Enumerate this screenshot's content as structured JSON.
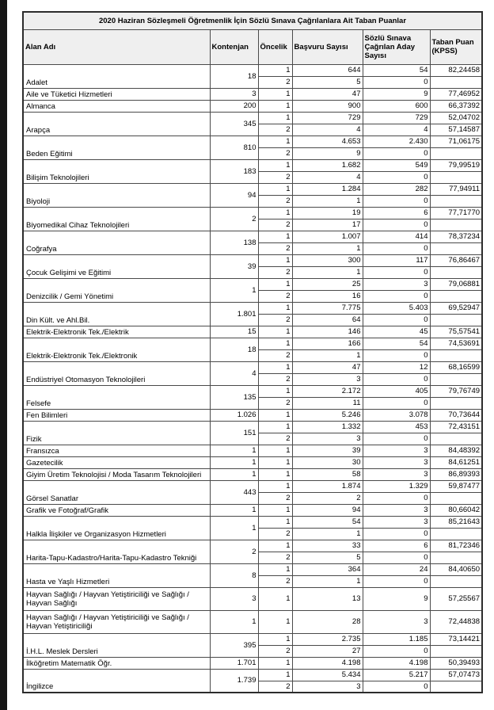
{
  "table": {
    "title": "2020 Haziran Sözleşmeli Öğretmenlik İçin Sözlü Sınava Çağrılanlara Ait Taban Puanlar",
    "columns": [
      "Alan Adı",
      "Kontenjan",
      "Öncelik",
      "Başvuru Sayısı",
      "Sözlü Sınava Çağrılan Aday Sayısı",
      "Taban Puan (KPSS)"
    ],
    "rows": [
      {
        "alan": "Adalet",
        "kontenjan": "18",
        "oncelik": [
          {
            "o": "1",
            "basvuru": "644",
            "cagrilan": "54",
            "taban": "82,24458"
          },
          {
            "o": "2",
            "basvuru": "5",
            "cagrilan": "0",
            "taban": ""
          }
        ]
      },
      {
        "alan": "Aile ve Tüketici Hizmetleri",
        "kontenjan": "3",
        "oncelik": [
          {
            "o": "1",
            "basvuru": "47",
            "cagrilan": "9",
            "taban": "77,46952"
          }
        ]
      },
      {
        "alan": "Almanca",
        "kontenjan": "200",
        "oncelik": [
          {
            "o": "1",
            "basvuru": "900",
            "cagrilan": "600",
            "taban": "66,37392"
          }
        ]
      },
      {
        "alan": "Arapça",
        "kontenjan": "345",
        "oncelik": [
          {
            "o": "1",
            "basvuru": "729",
            "cagrilan": "729",
            "taban": "52,04702"
          },
          {
            "o": "2",
            "basvuru": "4",
            "cagrilan": "4",
            "taban": "57,14587"
          }
        ]
      },
      {
        "alan": "Beden Eğitimi",
        "kontenjan": "810",
        "oncelik": [
          {
            "o": "1",
            "basvuru": "4.653",
            "cagrilan": "2.430",
            "taban": "71,06175"
          },
          {
            "o": "2",
            "basvuru": "9",
            "cagrilan": "0",
            "taban": ""
          }
        ]
      },
      {
        "alan": "Bilişim Teknolojileri",
        "kontenjan": "183",
        "oncelik": [
          {
            "o": "1",
            "basvuru": "1.682",
            "cagrilan": "549",
            "taban": "79,99519"
          },
          {
            "o": "2",
            "basvuru": "4",
            "cagrilan": "0",
            "taban": ""
          }
        ]
      },
      {
        "alan": "Biyoloji",
        "kontenjan": "94",
        "oncelik": [
          {
            "o": "1",
            "basvuru": "1.284",
            "cagrilan": "282",
            "taban": "77,94911"
          },
          {
            "o": "2",
            "basvuru": "1",
            "cagrilan": "0",
            "taban": ""
          }
        ]
      },
      {
        "alan": "Biyomedikal Cihaz Teknolojileri",
        "kontenjan": "2",
        "oncelik": [
          {
            "o": "1",
            "basvuru": "19",
            "cagrilan": "6",
            "taban": "77,71770"
          },
          {
            "o": "2",
            "basvuru": "17",
            "cagrilan": "0",
            "taban": ""
          }
        ]
      },
      {
        "alan": "Coğrafya",
        "kontenjan": "138",
        "oncelik": [
          {
            "o": "1",
            "basvuru": "1.007",
            "cagrilan": "414",
            "taban": "78,37234"
          },
          {
            "o": "2",
            "basvuru": "1",
            "cagrilan": "0",
            "taban": ""
          }
        ]
      },
      {
        "alan": "Çocuk Gelişimi ve Eğitimi",
        "kontenjan": "39",
        "oncelik": [
          {
            "o": "1",
            "basvuru": "300",
            "cagrilan": "117",
            "taban": "76,86467"
          },
          {
            "o": "2",
            "basvuru": "1",
            "cagrilan": "0",
            "taban": ""
          }
        ]
      },
      {
        "alan": "Denizcilik / Gemi Yönetimi",
        "kontenjan": "1",
        "oncelik": [
          {
            "o": "1",
            "basvuru": "25",
            "cagrilan": "3",
            "taban": "79,06881"
          },
          {
            "o": "2",
            "basvuru": "16",
            "cagrilan": "0",
            "taban": ""
          }
        ]
      },
      {
        "alan": "Din Kült. ve Ahl.Bil.",
        "kontenjan": "1.801",
        "oncelik": [
          {
            "o": "1",
            "basvuru": "7.775",
            "cagrilan": "5.403",
            "taban": "69,52947"
          },
          {
            "o": "2",
            "basvuru": "64",
            "cagrilan": "0",
            "taban": ""
          }
        ]
      },
      {
        "alan": "Elektrik-Elektronik Tek./Elektrik",
        "kontenjan": "15",
        "oncelik": [
          {
            "o": "1",
            "basvuru": "146",
            "cagrilan": "45",
            "taban": "75,57541"
          }
        ]
      },
      {
        "alan": "Elektrik-Elektronik Tek./Elektronik",
        "kontenjan": "18",
        "oncelik": [
          {
            "o": "1",
            "basvuru": "166",
            "cagrilan": "54",
            "taban": "74,53691"
          },
          {
            "o": "2",
            "basvuru": "1",
            "cagrilan": "0",
            "taban": ""
          }
        ]
      },
      {
        "alan": "Endüstriyel Otomasyon Teknolojileri",
        "kontenjan": "4",
        "oncelik": [
          {
            "o": "1",
            "basvuru": "47",
            "cagrilan": "12",
            "taban": "68,16599"
          },
          {
            "o": "2",
            "basvuru": "3",
            "cagrilan": "0",
            "taban": ""
          }
        ]
      },
      {
        "alan": "Felsefe",
        "kontenjan": "135",
        "oncelik": [
          {
            "o": "1",
            "basvuru": "2.172",
            "cagrilan": "405",
            "taban": "79,76749"
          },
          {
            "o": "2",
            "basvuru": "11",
            "cagrilan": "0",
            "taban": ""
          }
        ]
      },
      {
        "alan": "Fen Bilimleri",
        "kontenjan": "1.026",
        "oncelik": [
          {
            "o": "1",
            "basvuru": "5.246",
            "cagrilan": "3.078",
            "taban": "70,73644"
          }
        ]
      },
      {
        "alan": "Fizik",
        "kontenjan": "151",
        "oncelik": [
          {
            "o": "1",
            "basvuru": "1.332",
            "cagrilan": "453",
            "taban": "72,43151"
          },
          {
            "o": "2",
            "basvuru": "3",
            "cagrilan": "0",
            "taban": ""
          }
        ]
      },
      {
        "alan": "Fransızca",
        "kontenjan": "1",
        "oncelik": [
          {
            "o": "1",
            "basvuru": "39",
            "cagrilan": "3",
            "taban": "84,48392"
          }
        ]
      },
      {
        "alan": "Gazetecilik",
        "kontenjan": "1",
        "oncelik": [
          {
            "o": "1",
            "basvuru": "30",
            "cagrilan": "3",
            "taban": "84,61251"
          }
        ]
      },
      {
        "alan": "Giyim Üretim Teknolojisi / Moda Tasarım Teknolojileri",
        "kontenjan": "1",
        "oncelik": [
          {
            "o": "1",
            "basvuru": "58",
            "cagrilan": "3",
            "taban": "86,89393"
          }
        ]
      },
      {
        "alan": "Görsel Sanatlar",
        "kontenjan": "443",
        "oncelik": [
          {
            "o": "1",
            "basvuru": "1.874",
            "cagrilan": "1.329",
            "taban": "59,87477"
          },
          {
            "o": "2",
            "basvuru": "2",
            "cagrilan": "0",
            "taban": ""
          }
        ]
      },
      {
        "alan": "Grafik ve Fotoğraf/Grafik",
        "kontenjan": "1",
        "oncelik": [
          {
            "o": "1",
            "basvuru": "94",
            "cagrilan": "3",
            "taban": "80,66042"
          }
        ]
      },
      {
        "alan": "Halkla İlişkiler ve Organizasyon Hizmetleri",
        "kontenjan": "1",
        "oncelik": [
          {
            "o": "1",
            "basvuru": "54",
            "cagrilan": "3",
            "taban": "85,21643"
          },
          {
            "o": "2",
            "basvuru": "1",
            "cagrilan": "0",
            "taban": ""
          }
        ]
      },
      {
        "alan": "Harita-Tapu-Kadastro/Harita-Tapu-Kadastro Tekniği",
        "kontenjan": "2",
        "oncelik": [
          {
            "o": "1",
            "basvuru": "33",
            "cagrilan": "6",
            "taban": "81,72346"
          },
          {
            "o": "2",
            "basvuru": "5",
            "cagrilan": "0",
            "taban": ""
          }
        ]
      },
      {
        "alan": "Hasta ve Yaşlı Hizmetleri",
        "kontenjan": "8",
        "oncelik": [
          {
            "o": "1",
            "basvuru": "364",
            "cagrilan": "24",
            "taban": "84,40650"
          },
          {
            "o": "2",
            "basvuru": "1",
            "cagrilan": "0",
            "taban": ""
          }
        ]
      },
      {
        "alan": "Hayvan Sağlığı / Hayvan Yetiştiriciliği ve Sağlığı / Hayvan Sağlığı",
        "kontenjan": "3",
        "tall": true,
        "oncelik": [
          {
            "o": "1",
            "basvuru": "13",
            "cagrilan": "9",
            "taban": "57,25567"
          }
        ]
      },
      {
        "alan": "Hayvan Sağlığı / Hayvan Yetiştiriciliği ve Sağlığı / Hayvan Yetiştiriciliği",
        "kontenjan": "1",
        "tall": true,
        "oncelik": [
          {
            "o": "1",
            "basvuru": "28",
            "cagrilan": "3",
            "taban": "72,44838"
          }
        ]
      },
      {
        "alan": "İ.H.L. Meslek Dersleri",
        "kontenjan": "395",
        "oncelik": [
          {
            "o": "1",
            "basvuru": "2.735",
            "cagrilan": "1.185",
            "taban": "73,14421"
          },
          {
            "o": "2",
            "basvuru": "27",
            "cagrilan": "0",
            "taban": ""
          }
        ]
      },
      {
        "alan": "İlköğretim Matematik Öğr.",
        "kontenjan": "1.701",
        "oncelik": [
          {
            "o": "1",
            "basvuru": "4.198",
            "cagrilan": "4.198",
            "taban": "50,39493"
          }
        ]
      },
      {
        "alan": "İngilizce",
        "kontenjan": "1.739",
        "oncelik": [
          {
            "o": "1",
            "basvuru": "5.434",
            "cagrilan": "5.217",
            "taban": "57,07473"
          },
          {
            "o": "2",
            "basvuru": "3",
            "cagrilan": "0",
            "taban": ""
          }
        ]
      }
    ]
  }
}
